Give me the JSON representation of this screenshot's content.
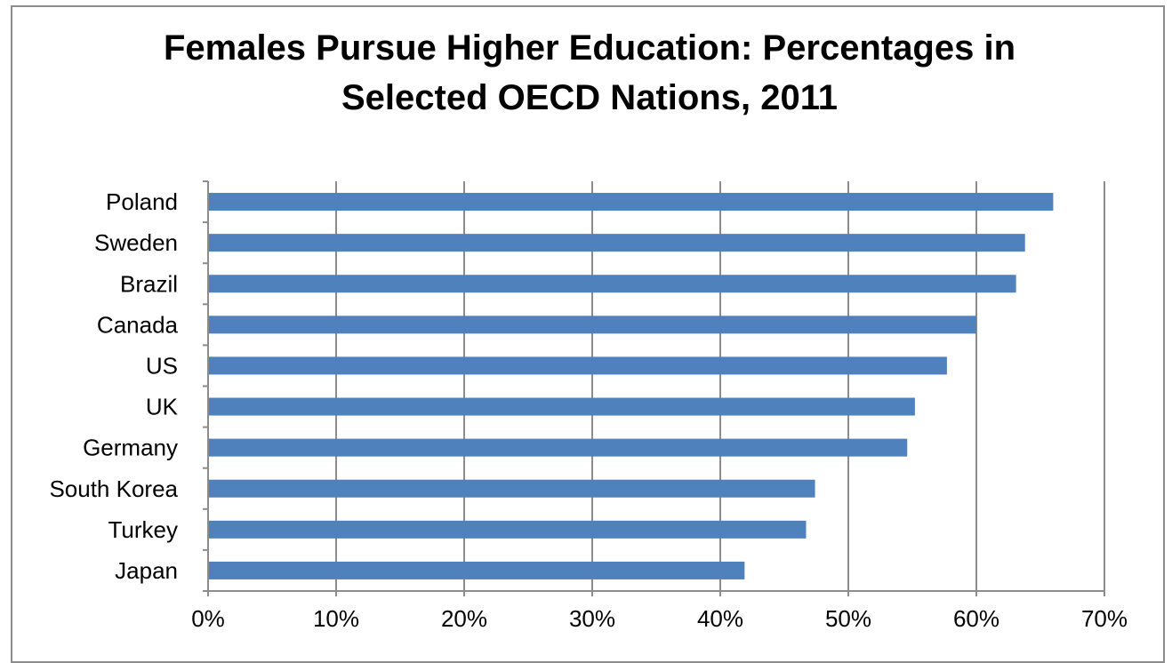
{
  "chart_data": {
    "type": "bar",
    "orientation": "horizontal",
    "title": "Females Pursue Higher Education: Percentages in\nSelected OECD Nations, 2011",
    "xlabel": "",
    "ylabel": "",
    "categories": [
      "Poland",
      "Sweden",
      "Brazil",
      "Canada",
      "US",
      "UK",
      "Germany",
      "South Korea",
      "Turkey",
      "Japan"
    ],
    "values": [
      66,
      63.8,
      63.1,
      60,
      57.7,
      55.2,
      54.6,
      47.4,
      46.7,
      41.9
    ],
    "xlim": [
      0,
      70
    ],
    "xticks": [
      "0%",
      "10%",
      "20%",
      "30%",
      "40%",
      "50%",
      "60%",
      "70%"
    ],
    "grid": true,
    "colors": {
      "bar": "#4f81bd",
      "grid": "#8c8c8c",
      "axis": "#8c8c8c"
    }
  }
}
